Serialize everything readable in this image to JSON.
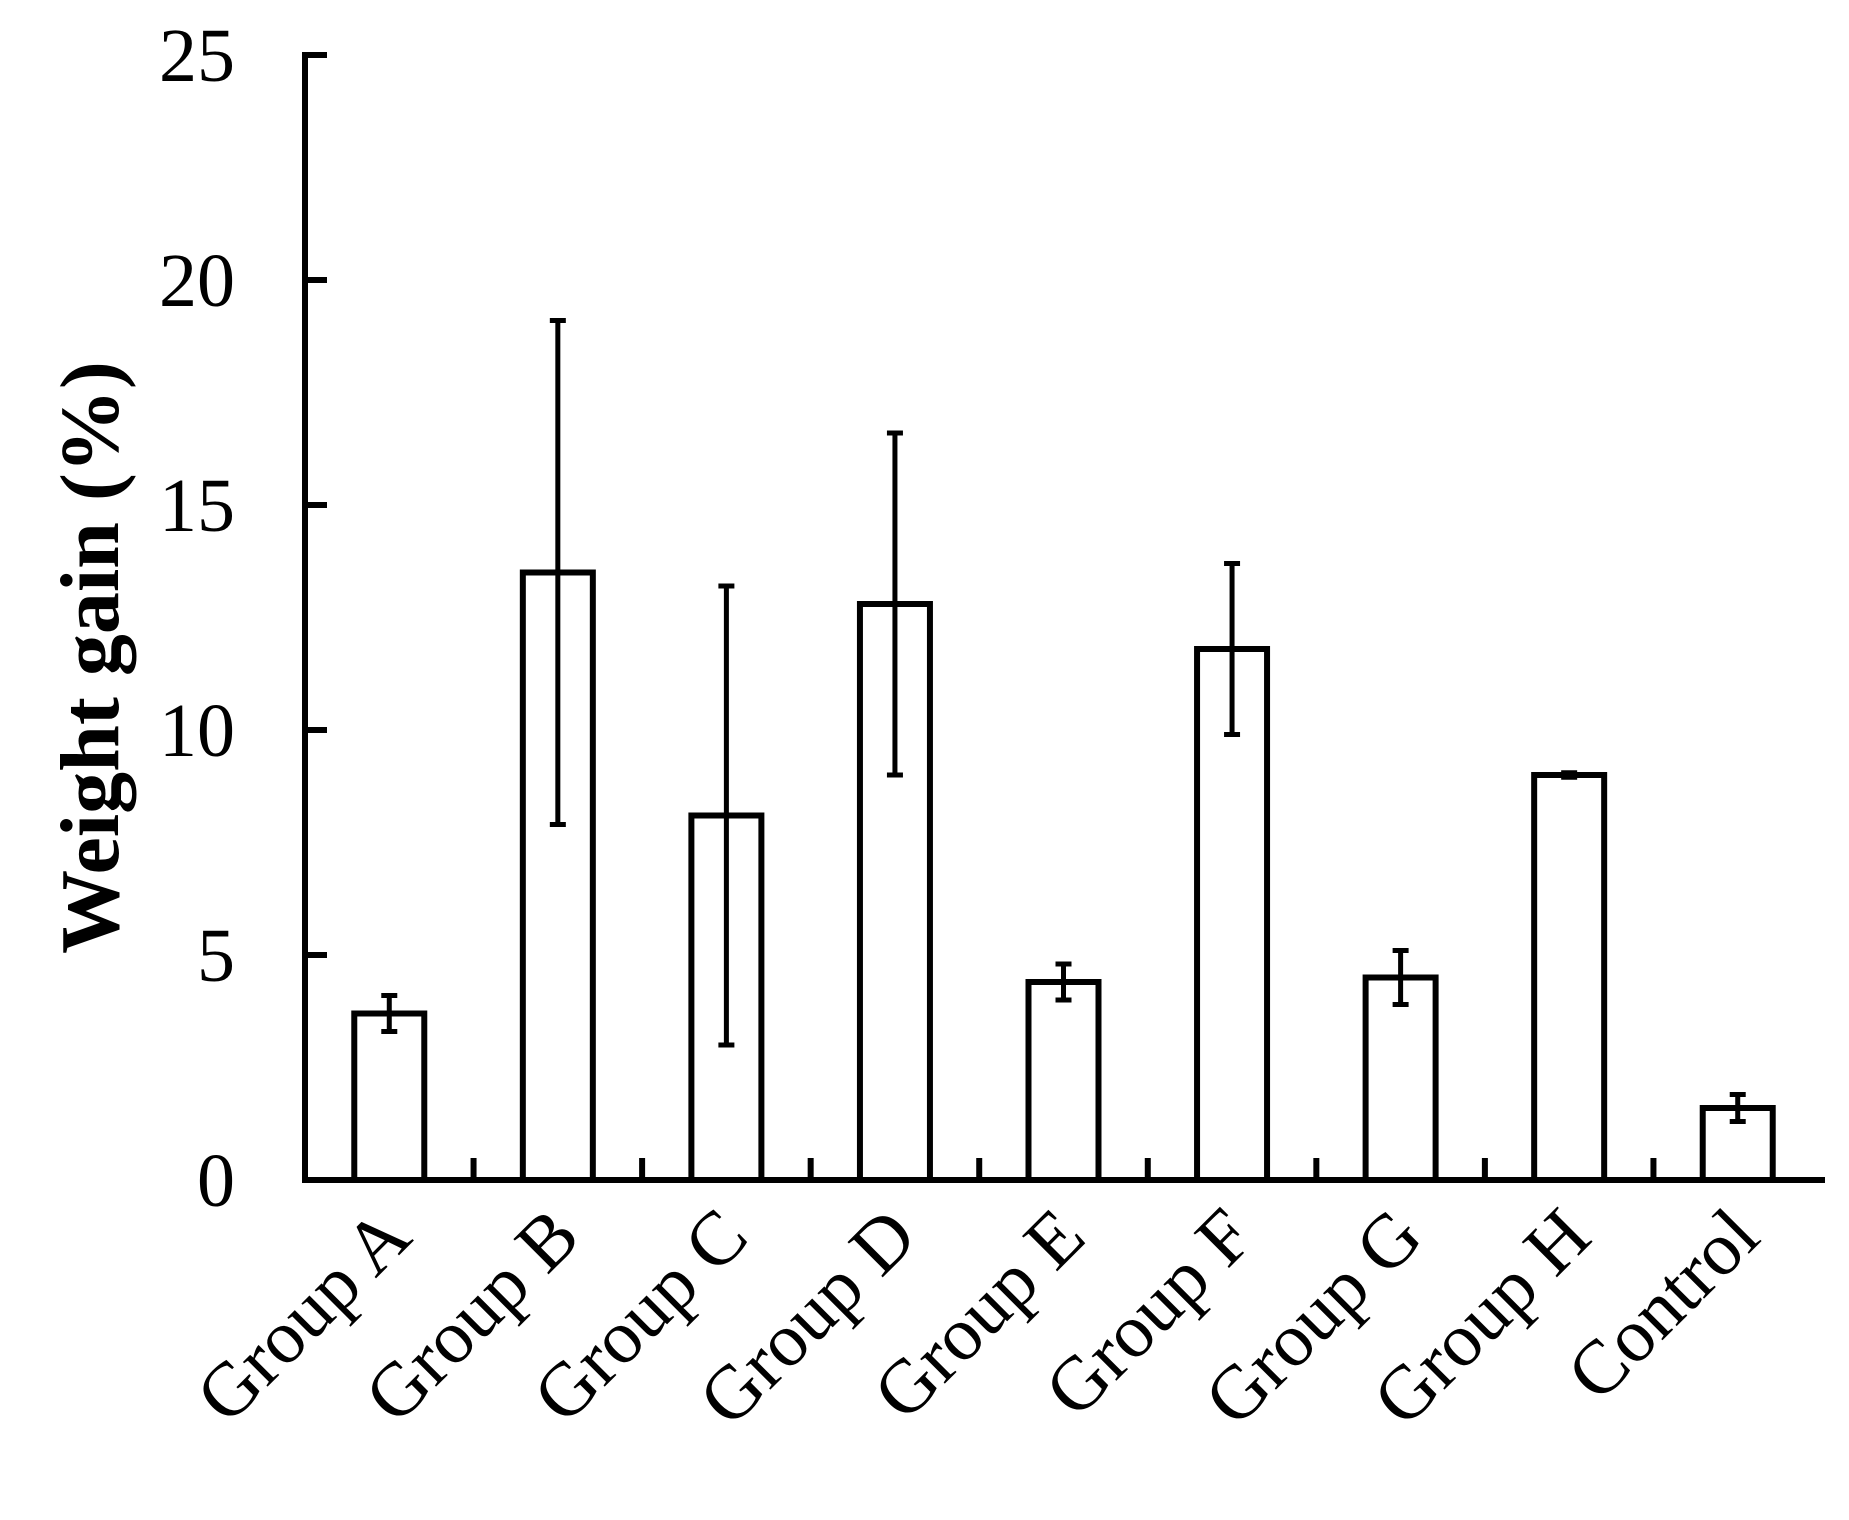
{
  "chart_data": {
    "type": "bar",
    "title": "",
    "xlabel": "",
    "ylabel": "Weight gain (%)",
    "ylim": [
      0,
      25
    ],
    "yticks": [
      0,
      5,
      10,
      15,
      20,
      25
    ],
    "ytick_labels": [
      "0",
      "5",
      "10",
      "15",
      "20",
      "25"
    ],
    "grid": false,
    "legend": "none",
    "categories": [
      "Group A",
      "Group B",
      "Group C",
      "Group D",
      "Group E",
      "Group F",
      "Group G",
      "Group H",
      "Control"
    ],
    "values": [
      3.7,
      13.5,
      8.1,
      12.8,
      4.4,
      11.8,
      4.5,
      9.0,
      1.6
    ],
    "error": [
      0.4,
      5.6,
      5.1,
      3.8,
      0.4,
      1.9,
      0.6,
      0.05,
      0.3
    ],
    "colors": {
      "bar_fill": "#ffffff",
      "stroke": "#000000"
    }
  }
}
